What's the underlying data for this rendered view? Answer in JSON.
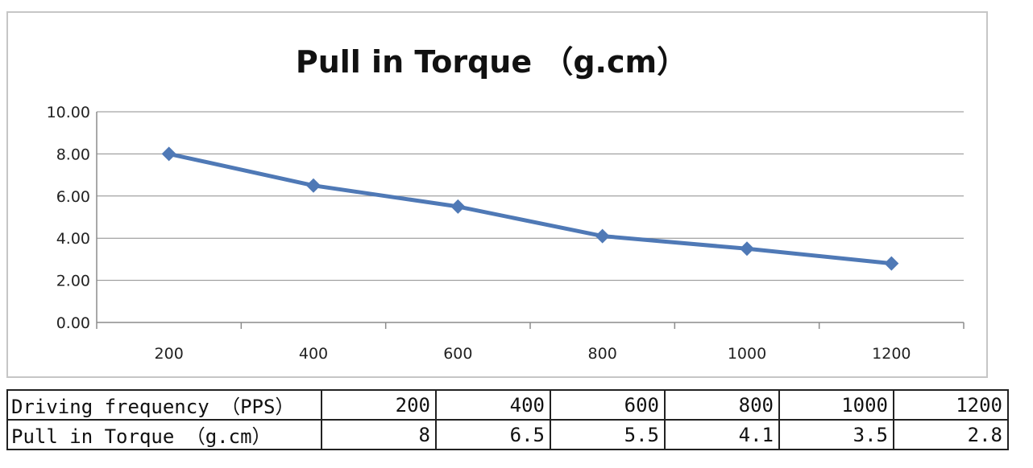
{
  "chart_data": {
    "type": "line",
    "title": "Pull in Torque （g.cm）",
    "categories": [
      "200",
      "400",
      "600",
      "800",
      "1000",
      "1200"
    ],
    "series": [
      {
        "values": [
          8,
          6.5,
          5.5,
          4.1,
          3.5,
          2.8
        ]
      }
    ],
    "ylim": [
      0,
      10
    ],
    "yticks": [
      "0.00",
      "2.00",
      "4.00",
      "6.00",
      "8.00",
      "10.00"
    ],
    "grid": true,
    "legend": "none",
    "line_color": "#4f79b6"
  },
  "table": {
    "rows": [
      {
        "label": "Driving frequency （PPS）",
        "cells": [
          "200",
          "400",
          "600",
          "800",
          "1000",
          "1200"
        ]
      },
      {
        "label": "Pull in Torque （g.cm）",
        "cells": [
          "8",
          "6.5",
          "5.5",
          "4.1",
          "3.5",
          "2.8"
        ]
      }
    ]
  }
}
